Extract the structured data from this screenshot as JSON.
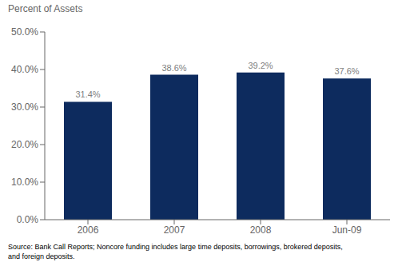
{
  "chart_data": {
    "type": "bar",
    "ylabel": "Percent of Assets",
    "categories": [
      "2006",
      "2007",
      "2008",
      "Jun-09"
    ],
    "values": [
      31.4,
      38.6,
      39.2,
      37.6
    ],
    "value_labels": [
      "31.4%",
      "38.6%",
      "39.2%",
      "37.6%"
    ],
    "color": "#0d2b5e",
    "ylim": [
      0,
      50
    ],
    "yticks": [
      {
        "value": 0,
        "label": "0.0%"
      },
      {
        "value": 10,
        "label": "10.0%"
      },
      {
        "value": 20,
        "label": "20.0%"
      },
      {
        "value": 30,
        "label": "30.0%"
      },
      {
        "value": 40,
        "label": "40.0%"
      },
      {
        "value": 50,
        "label": "50.0%"
      }
    ],
    "grid": false,
    "data_labels": true,
    "annotations": [
      "Source: Bank Call Reports; Noncore funding includes large time deposits, borrowings, brokered deposits,\nand foreign deposits."
    ]
  }
}
